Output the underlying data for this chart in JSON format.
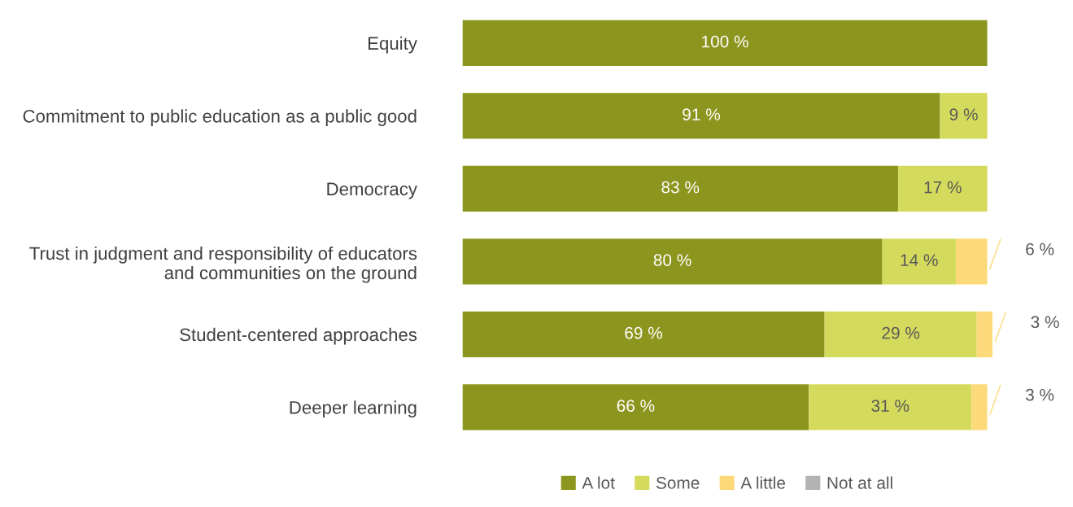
{
  "chart_data": {
    "type": "bar",
    "orientation": "horizontal",
    "stacked": true,
    "legend": "bottom",
    "grid": false,
    "categories": [
      "Equity",
      "Commitment to public education as a public good",
      "Democracy",
      "Trust in judgment and responsibility of educators\nand communities on the ground",
      "Student-centered approaches",
      "Deeper learning"
    ],
    "series": [
      {
        "name": "A lot",
        "color": "#8c961e",
        "values": [
          100,
          91,
          83,
          80,
          69,
          66
        ],
        "value_labels": [
          "100 %",
          "91 %",
          "83 %",
          "80 %",
          "69 %",
          "66 %"
        ]
      },
      {
        "name": "Some",
        "color": "#d4db5c",
        "values": [
          0,
          9,
          17,
          14,
          29,
          31
        ],
        "value_labels": [
          null,
          "9 %",
          "17 %",
          "14 %",
          "29 %",
          "31 %"
        ]
      },
      {
        "name": "A little",
        "color": "#fdd97a",
        "values": [
          0,
          0,
          0,
          6,
          3,
          3
        ],
        "value_labels": [
          null,
          null,
          null,
          "6 %",
          "3 %",
          "3 %"
        ]
      },
      {
        "name": "Not at all",
        "color": "#b3b3b3",
        "values": [
          0,
          0,
          0,
          0,
          0,
          0
        ],
        "value_labels": [
          null,
          null,
          null,
          null,
          null,
          null
        ]
      }
    ]
  }
}
